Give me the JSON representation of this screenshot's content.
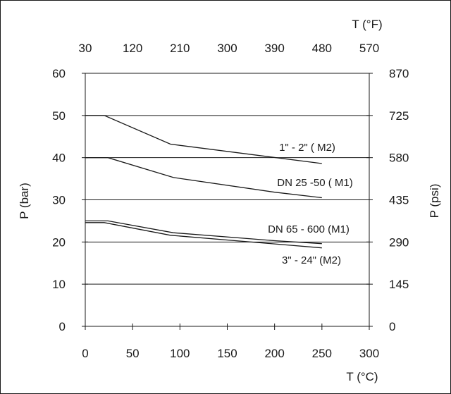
{
  "chart_data": {
    "type": "line",
    "title": "",
    "xlabel": "T (°C)",
    "ylabel": "P (bar)",
    "x2label": "T (°F)",
    "y2label": "P (psi)",
    "xlim": [
      0,
      300
    ],
    "ylim": [
      0,
      60
    ],
    "x_ticks": [
      0,
      50,
      100,
      150,
      200,
      250,
      300
    ],
    "y_ticks": [
      0,
      10,
      20,
      30,
      40,
      50,
      60
    ],
    "x2_ticks": [
      "30",
      "120",
      "210",
      "300",
      "390",
      "480",
      "570"
    ],
    "y2_ticks": [
      "0",
      "145",
      "290",
      "435",
      "580",
      "725",
      "870"
    ],
    "grid": "horizontal",
    "colors": {
      "line": "#1a1a1a",
      "grid": "#1a1a1a",
      "border": "#1a1a1a"
    },
    "series": [
      {
        "name": "1\" - 2\" ( M2)",
        "x": [
          0,
          20,
          90,
          250
        ],
        "y": [
          50,
          50,
          43.2,
          38.6
        ]
      },
      {
        "name": "DN 25 -50 ( M1)",
        "x": [
          0,
          24,
          93,
          200,
          250
        ],
        "y": [
          40,
          40,
          35.3,
          31.8,
          30.5
        ]
      },
      {
        "name": "DN 65 - 600 (M1)",
        "x": [
          0,
          24,
          93,
          200,
          250
        ],
        "y": [
          25,
          25,
          22.2,
          20.3,
          19.6
        ]
      },
      {
        "name": "3\" - 24\" (M2)",
        "x": [
          0,
          20,
          90,
          250
        ],
        "y": [
          24.6,
          24.6,
          21.6,
          18.6
        ]
      }
    ]
  }
}
